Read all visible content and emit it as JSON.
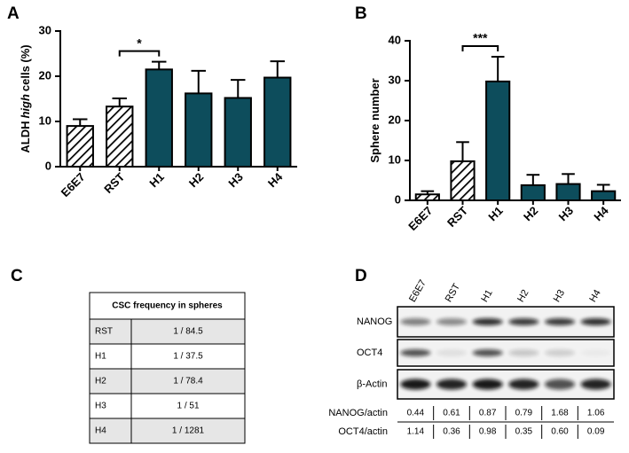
{
  "panel_labels": [
    "A",
    "B",
    "C",
    "D"
  ],
  "chart_data": [
    {
      "type": "bar",
      "ylabel": {
        "prefix": "ALDH",
        "italic": "high",
        "suffix": "cells (%)"
      },
      "categories": [
        "E6E7",
        "RST",
        "H1",
        "H2",
        "H3",
        "H4"
      ],
      "values": [
        9,
        13.3,
        21.5,
        16.2,
        15.2,
        19.7
      ],
      "errors": [
        1.5,
        1.8,
        1.7,
        5,
        4,
        3.6
      ],
      "patterns": [
        "hatch",
        "hatch",
        "solid",
        "solid",
        "solid",
        "solid"
      ],
      "color": "#0d4d5c",
      "ylim": [
        0,
        30
      ],
      "yticks": [
        0,
        10,
        20,
        30
      ],
      "annotations": [
        {
          "text": "*",
          "between": [
            "RST",
            "H1"
          ]
        }
      ]
    },
    {
      "type": "bar",
      "ylabel": {
        "prefix": "Sphere number"
      },
      "categories": [
        "E6E7",
        "RST",
        "H1",
        "H2",
        "H3",
        "H4"
      ],
      "values": [
        1.5,
        9.8,
        29.8,
        3.8,
        4.1,
        2.3
      ],
      "errors": [
        0.8,
        4.8,
        6.2,
        2.6,
        2.5,
        1.6
      ],
      "patterns": [
        "hatch",
        "hatch",
        "solid",
        "solid",
        "solid",
        "solid"
      ],
      "color": "#0d4d5c",
      "ylim": [
        0,
        40
      ],
      "yticks": [
        0,
        10,
        20,
        30,
        40
      ],
      "annotations": [
        {
          "text": "***",
          "between": [
            "RST",
            "H1"
          ]
        }
      ]
    }
  ],
  "table": {
    "header": "CSC frequency in spheres",
    "rows": [
      [
        "RST",
        "1 / 84.5"
      ],
      [
        "H1",
        "1 / 37.5"
      ],
      [
        "H2",
        "1 / 78.4"
      ],
      [
        "H3",
        "1 / 51"
      ],
      [
        "H4",
        "1 / 1281"
      ]
    ]
  },
  "blot": {
    "lanes": [
      "E6E7",
      "RST",
      "H1",
      "H2",
      "H3",
      "H4"
    ],
    "bands": [
      "NANOG",
      "OCT4",
      "β-Actin"
    ],
    "quant": [
      {
        "label": "NANOG/actin",
        "values": [
          "0.44",
          "0.61",
          "0.87",
          "0.79",
          "1.68",
          "1.06"
        ]
      },
      {
        "label": "OCT4/actin",
        "values": [
          "1.14",
          "0.36",
          "0.98",
          "0.35",
          "0.60",
          "0.09"
        ]
      }
    ]
  }
}
